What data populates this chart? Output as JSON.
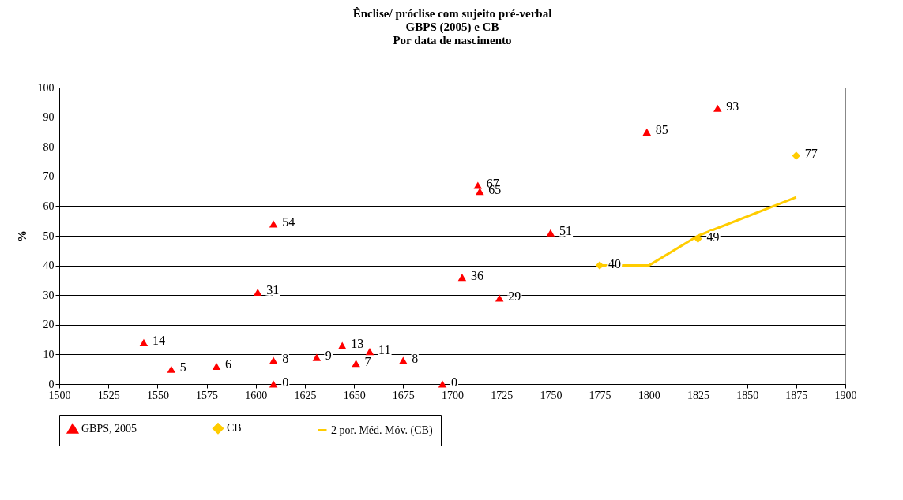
{
  "chart_data": {
    "type": "scatter",
    "title": "Ênclise/ próclise  com sujeito pré-verbal\nGBPS (2005) e CB\nPor data de nascimento",
    "ylabel": "%",
    "series": [
      {
        "name": "GBPS, 2005",
        "type": "scatter",
        "marker": "triangle",
        "color": "#ff0000",
        "x": [
          1543,
          1557,
          1580,
          1601,
          1609,
          1609,
          1609,
          1631,
          1644,
          1651,
          1658,
          1675,
          1695,
          1705,
          1713,
          1714,
          1724,
          1750,
          1799,
          1835
        ],
        "values": [
          14,
          5,
          6,
          31,
          54,
          8,
          0,
          9,
          13,
          7,
          11,
          8,
          0,
          36,
          67,
          65,
          29,
          51,
          85,
          93
        ],
        "value_labels": [
          "14",
          "5",
          "6",
          "31",
          "54",
          "8",
          "0",
          "9",
          "13",
          "7",
          "11",
          "8",
          "0",
          "36",
          "67",
          "65",
          "29",
          "51",
          "85",
          "93"
        ]
      },
      {
        "name": "CB",
        "type": "scatter",
        "marker": "diamond",
        "color": "#ffcc00",
        "x": [
          1775,
          1825,
          1875
        ],
        "values": [
          40,
          49,
          77
        ],
        "value_labels": [
          "40",
          "49",
          "77"
        ]
      },
      {
        "name": "2 por. Méd. Móv. (CB)",
        "type": "line",
        "marker": "none",
        "color": "#ffcc00",
        "x": [
          1775,
          1800,
          1825,
          1875
        ],
        "values": [
          40,
          40,
          50,
          63
        ]
      }
    ],
    "xlim": [
      1500,
      1900
    ],
    "xticks": [
      1500,
      1525,
      1550,
      1575,
      1600,
      1625,
      1650,
      1675,
      1700,
      1725,
      1750,
      1775,
      1800,
      1825,
      1850,
      1875,
      1900
    ],
    "ylim": [
      0,
      100
    ],
    "yticks": [
      0,
      10,
      20,
      30,
      40,
      50,
      60,
      70,
      80,
      90,
      100
    ],
    "grid": "y",
    "legend": "bottom"
  }
}
